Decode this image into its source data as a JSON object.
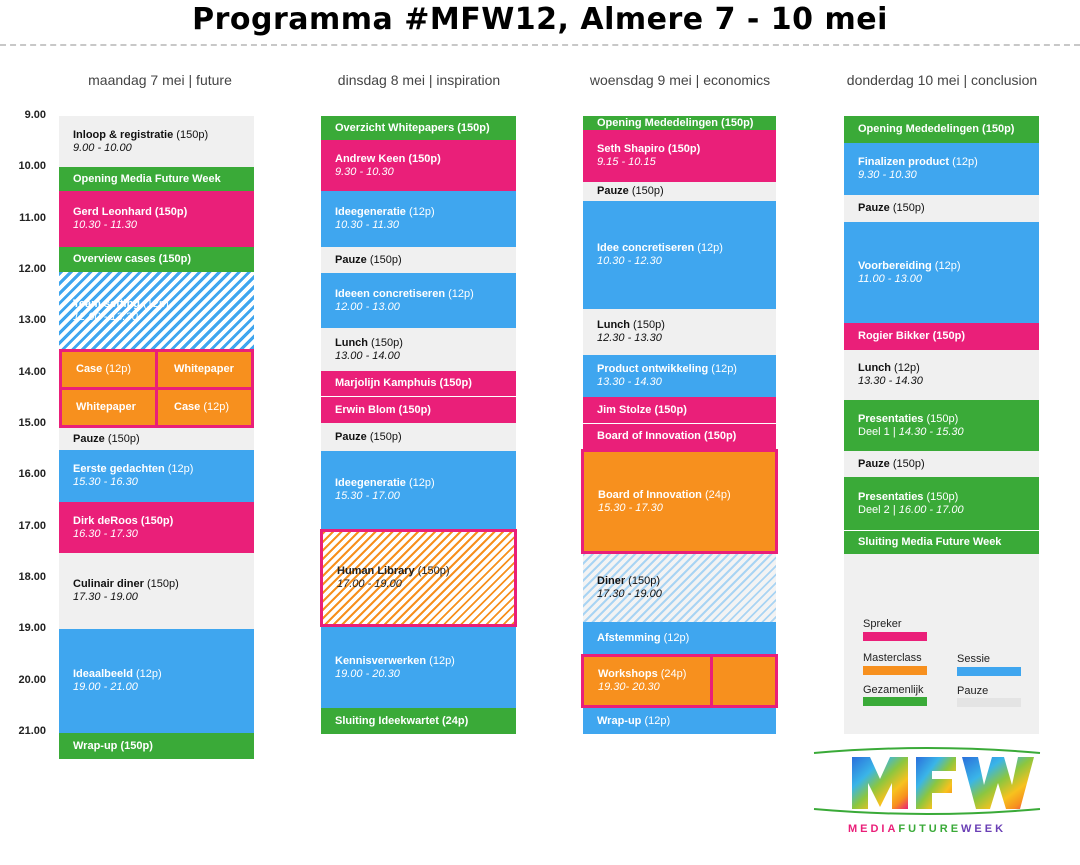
{
  "title": "Programma #MFW12, Almere 7 - 10 mei",
  "days": {
    "mon": "maandag 7 mei | future",
    "tue": "dinsdag 8 mei | inspiration",
    "wed": "woensdag 9 mei | economics",
    "thu": "donderdag 10 mei | conclusion"
  },
  "times": [
    "9.00",
    "10.00",
    "11.00",
    "12.00",
    "13.00",
    "14.00",
    "15.00",
    "16.00",
    "17.00",
    "18.00",
    "19.00",
    "20.00",
    "21.00"
  ],
  "colors": {
    "spreker": "#ea1f79",
    "masterclass": "#f7901e",
    "sessie": "#3fa6ef",
    "gezamenlijk": "#3aaa38",
    "pauze": "#f0f0f0"
  },
  "mon": {
    "inloop": {
      "t": "Inloop & registratie",
      "n": " (150p)",
      "s": "9.00 - 10.00"
    },
    "opening": {
      "t": "Opening Media Future Week"
    },
    "gerd": {
      "t": "Gerd Leonhard (150p)",
      "s": "10.30 - 11.30"
    },
    "overview": {
      "t": "Overview cases (150p)"
    },
    "team": {
      "t": "Team setting",
      "n": " (12p)",
      "s": "12.00 - 13.30"
    },
    "case1": {
      "t": "Case",
      "n": " (12p)"
    },
    "wp1": {
      "t": "Whitepaper"
    },
    "wp2": {
      "t": "Whitepaper"
    },
    "case2": {
      "t": "Case",
      "n": " (12p)"
    },
    "pauze": {
      "t": "Pauze",
      "n": " (150p)"
    },
    "eerste": {
      "t": "Eerste gedachten",
      "n": " (12p)",
      "s": "15.30 - 16.30"
    },
    "dirk": {
      "t": "Dirk deRoos (150p)",
      "s": "16.30 - 17.30"
    },
    "diner": {
      "t": "Culinair diner",
      "n": " (150p)",
      "s": "17.30 - 19.00"
    },
    "ideaal": {
      "t": "Ideaalbeeld",
      "n": " (12p)",
      "s": "19.00 - 21.00"
    },
    "wrap": {
      "t": "Wrap-up (150p)"
    }
  },
  "tue": {
    "overzicht": {
      "t": "Overzicht Whitepapers (150p)"
    },
    "andrew": {
      "t": "Andrew Keen (150p)",
      "s": "9.30 - 10.30"
    },
    "idee1": {
      "t": "Ideegeneratie",
      "n": " (12p)",
      "s": "10.30 - 11.30"
    },
    "pauze1": {
      "t": "Pauze",
      "n": " (150p)"
    },
    "ideeen": {
      "t": "Ideeen concretiseren",
      "n": " (12p)",
      "s": "12.00 - 13.00"
    },
    "lunch": {
      "t": "Lunch",
      "n": " (150p)",
      "s": "13.00 - 14.00"
    },
    "marjolijn": {
      "t": "Marjolijn Kamphuis (150p)"
    },
    "erwin": {
      "t": "Erwin Blom (150p)"
    },
    "pauze2": {
      "t": "Pauze",
      "n": " (150p)"
    },
    "idee2": {
      "t": "Ideegeneratie",
      "n": " (12p)",
      "s": "15.30 - 17.00"
    },
    "human": {
      "t": "Human Library",
      "n": " (150p)",
      "s": "17.00 - 19.00"
    },
    "kennis": {
      "t": "Kennisverwerken",
      "n": " (12p)",
      "s": "19.00 - 20.30"
    },
    "sluiting": {
      "t": "Sluiting Ideekwartet (24p)"
    }
  },
  "wed": {
    "opening": {
      "t": "Opening Mededelingen (150p)"
    },
    "seth": {
      "t": "Seth Shapiro (150p)",
      "s": "9.15 - 10.15"
    },
    "pauze": {
      "t": "Pauze",
      "n": " (150p)"
    },
    "idee": {
      "t": "Idee concretiseren",
      "n": " (12p)",
      "s": "10.30 - 12.30"
    },
    "lunch": {
      "t": "Lunch",
      "n": " (150p)",
      "s": "12.30 - 13.30"
    },
    "product": {
      "t": "Product ontwikkeling",
      "n": " (12p)",
      "s": "13.30 - 14.30"
    },
    "jim": {
      "t": "Jim Stolze (150p)"
    },
    "board1": {
      "t": "Board of Innovation (150p)"
    },
    "board2": {
      "t": "Board of Innovation",
      "n": " (24p)",
      "s": "15.30 - 17.30"
    },
    "diner": {
      "t": "Diner",
      "n": " (150p)",
      "s": "17.30 - 19.00"
    },
    "afstemming": {
      "t": "Afstemming",
      "n": " (12p)"
    },
    "workshops": {
      "t": "Workshops",
      "n": " (24p)",
      "s": "19.30- 20.30"
    },
    "wrap": {
      "t": "Wrap-up",
      "n": " (12p)"
    }
  },
  "thu": {
    "opening": {
      "t": "Opening Mededelingen (150p)"
    },
    "final": {
      "t": "Finalizen product",
      "n": " (12p)",
      "s": "9.30 - 10.30"
    },
    "pauze1": {
      "t": "Pauze",
      "n": " (150p)"
    },
    "voorb": {
      "t": "Voorbereiding",
      "n": " (12p)",
      "s": "11.00 - 13.00"
    },
    "rogier": {
      "t": "Rogier Bikker (150p)"
    },
    "lunch": {
      "t": "Lunch",
      "n": " (12p)",
      "s": "13.30 - 14.30"
    },
    "pres1": {
      "t": "Presentaties",
      "n": " (150p)",
      "s1": "Deel 1 | ",
      "s": "14.30 - 15.30"
    },
    "pauze2": {
      "t": "Pauze",
      "n": " (150p)"
    },
    "pres2": {
      "t": "Presentaties",
      "n": " (150p)",
      "s1": "Deel 2 | ",
      "s": "16.00 - 17.00"
    },
    "sluiting": {
      "t": "Sluiting Media Future Week"
    }
  },
  "legend": {
    "spreker": "Spreker",
    "masterclass": "Masterclass",
    "sessie": "Sessie",
    "gezamenlijk": "Gezamenlijk",
    "pauze": "Pauze"
  },
  "logo": {
    "mark": "MFW",
    "word1": "MEDIA",
    "word2": "FUTURE",
    "word3": "WEEK"
  }
}
